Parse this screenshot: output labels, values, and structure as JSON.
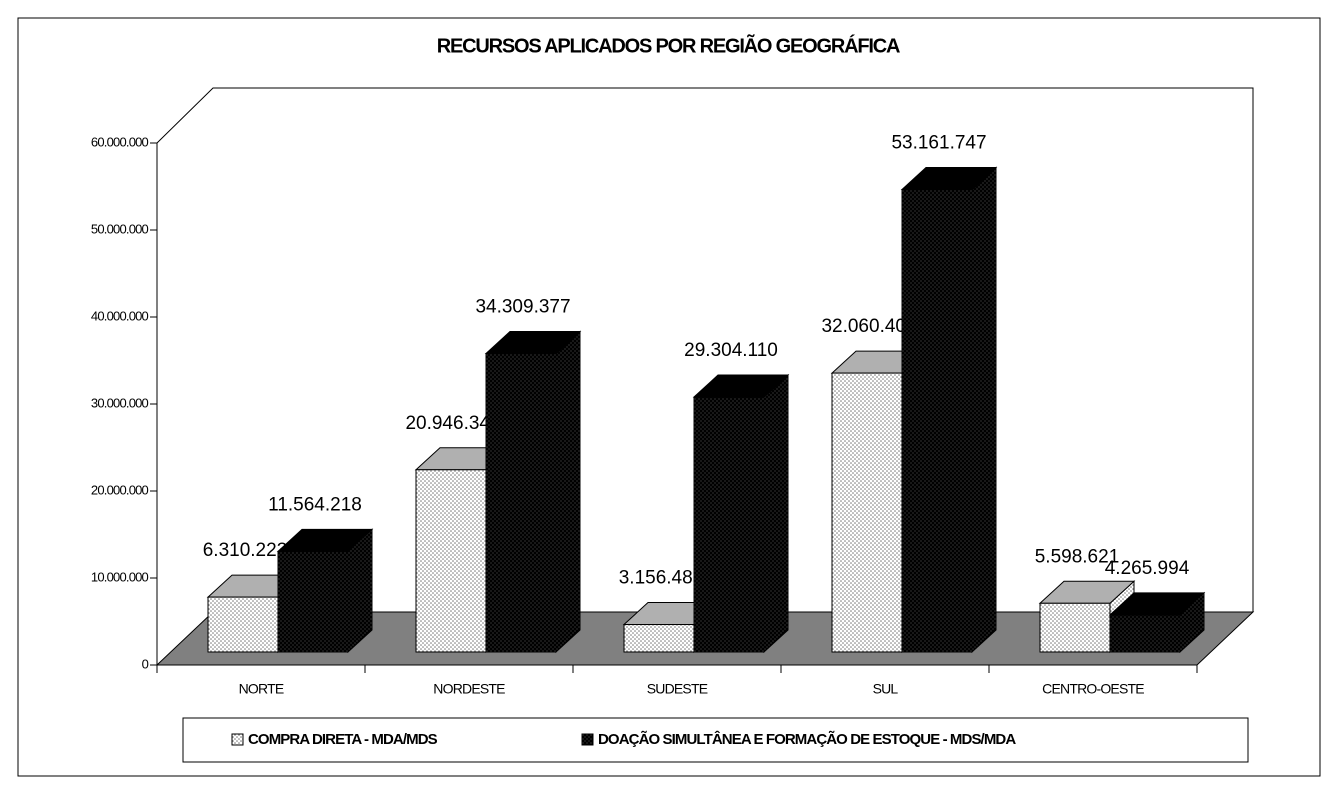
{
  "chart_data": {
    "type": "bar3d",
    "title": "RECURSOS APLICADOS POR REGIÃO GEOGRÁFICA",
    "categories": [
      "NORTE",
      "NORDESTE",
      "SUDESTE",
      "SUL",
      "CENTRO-OESTE"
    ],
    "series": [
      {
        "name": "COMPRA DIRETA - MDA/MDS",
        "color": "#ffffff",
        "values": [
          6310223,
          20946343,
          3156483,
          32060400,
          5598621
        ],
        "value_labels": [
          "6.310.223",
          "20.946.343",
          "3.156.483",
          "32.060.400",
          "5.598.621"
        ]
      },
      {
        "name": "DOAÇÃO SIMULTÂNEA E FORMAÇÃO DE ESTOQUE - MDS/MDA",
        "color": "#000000",
        "values": [
          11564218,
          34309377,
          29304110,
          53161747,
          4265994
        ],
        "value_labels": [
          "11.564.218",
          "34.309.377",
          "29.304.110",
          "53.161.747",
          "4.265.994"
        ]
      }
    ],
    "ylim": [
      0,
      60000000
    ],
    "yticks": [
      {
        "value": 0,
        "label": "0"
      },
      {
        "value": 10000000,
        "label": "10.000.000"
      },
      {
        "value": 20000000,
        "label": "20.000.000"
      },
      {
        "value": 30000000,
        "label": "30.000.000"
      },
      {
        "value": 40000000,
        "label": "40.000.000"
      },
      {
        "value": 50000000,
        "label": "50.000.000"
      },
      {
        "value": 60000000,
        "label": "60.000.000"
      }
    ]
  }
}
